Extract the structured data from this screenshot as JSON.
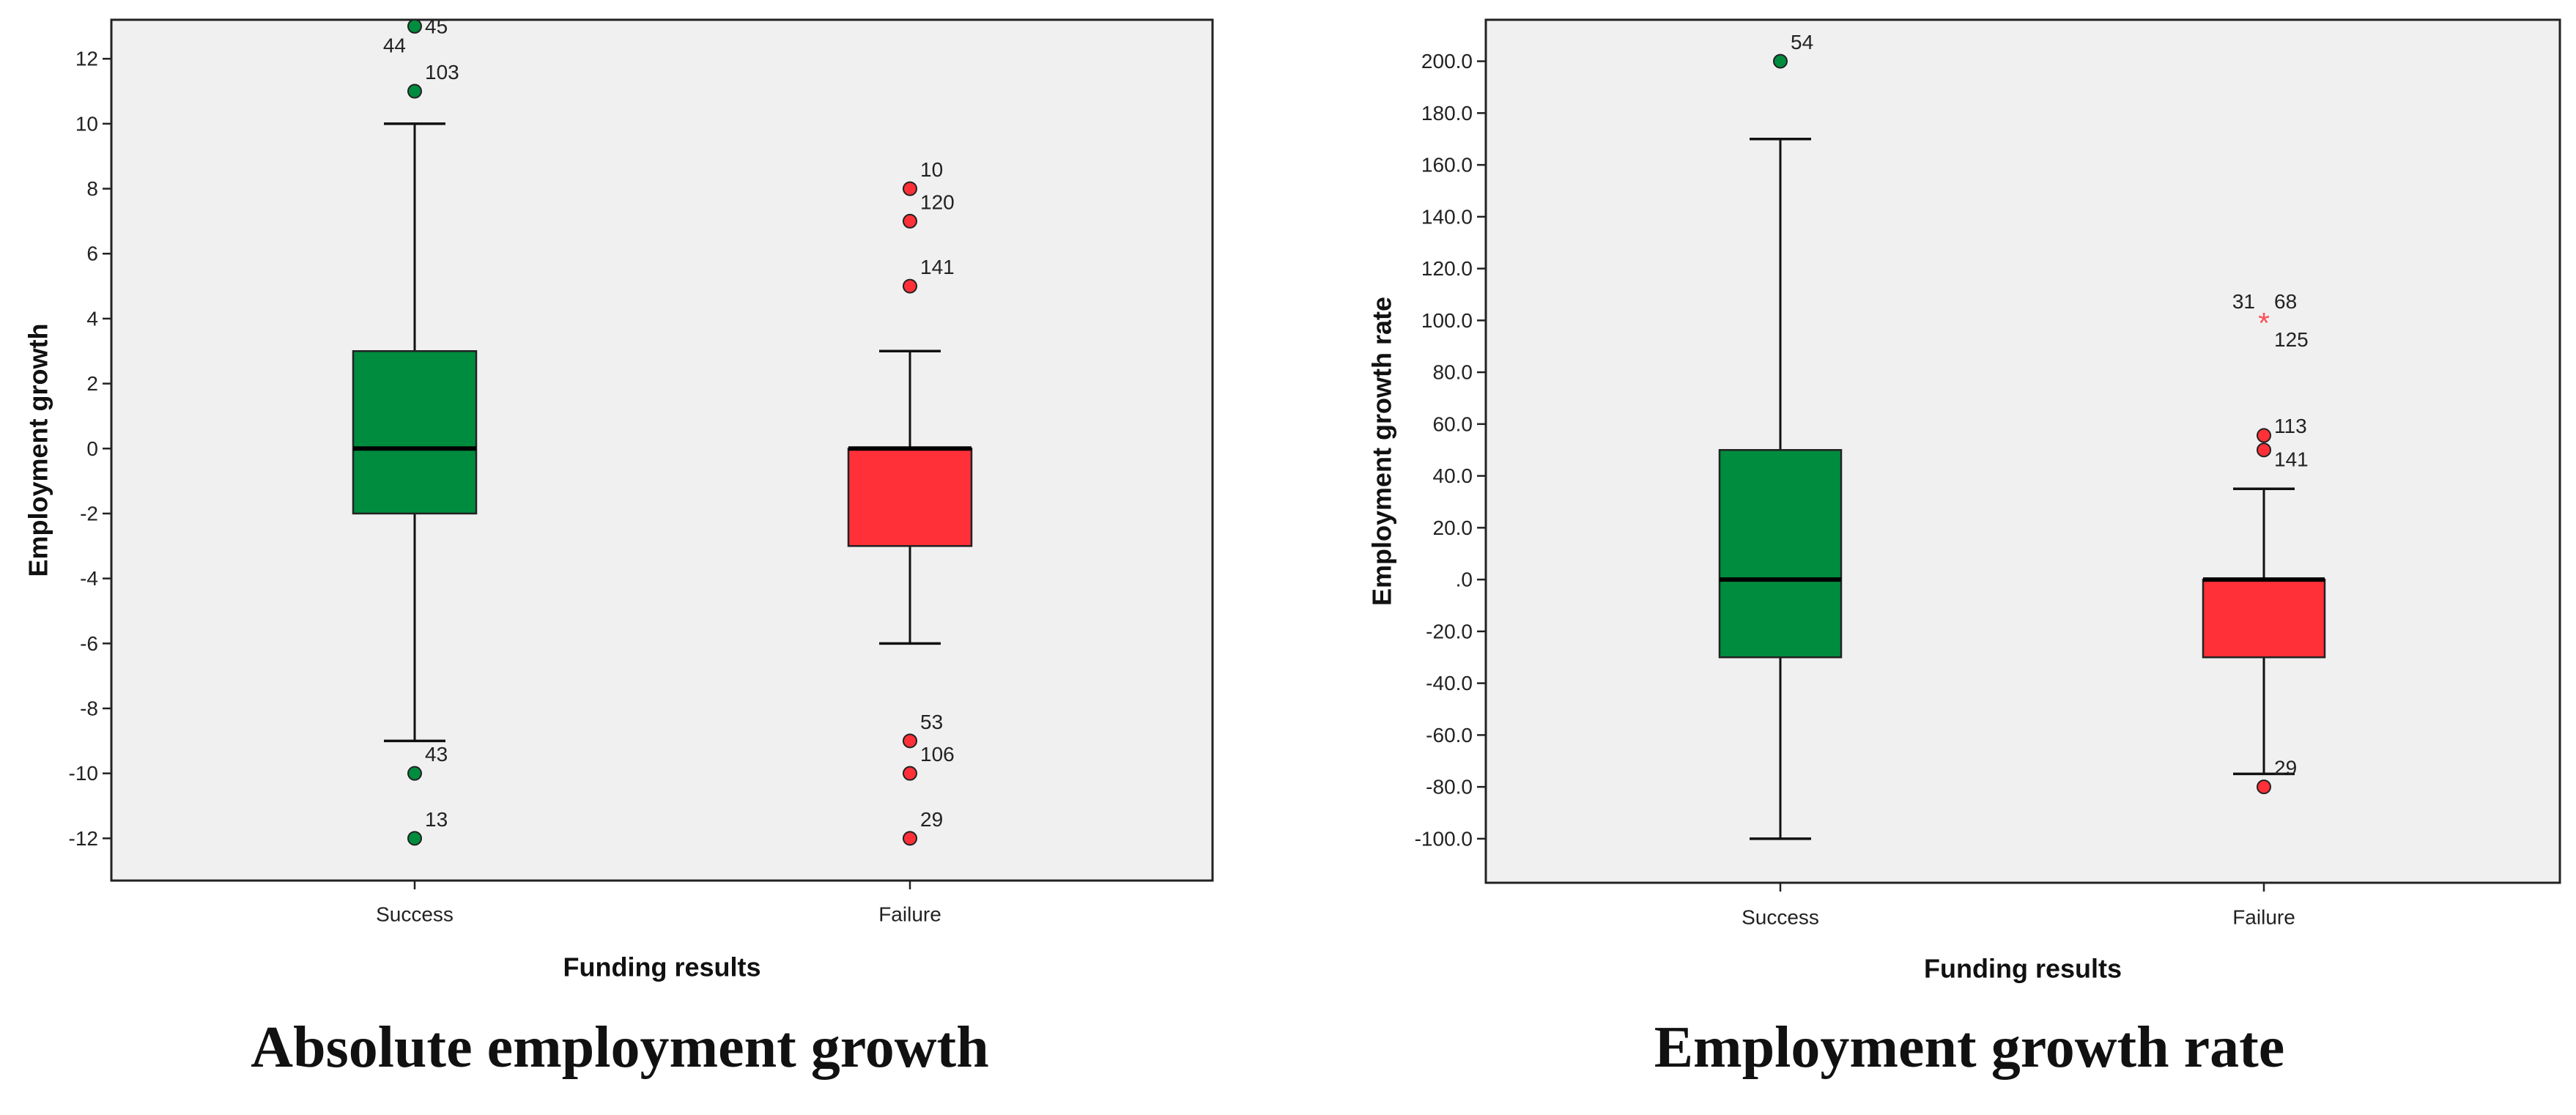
{
  "colors": {
    "success_fill": "#008C3E",
    "failure_fill": "#FF3038",
    "plot_background": "#F0F0F0",
    "extreme_marker": "#FF4D55"
  },
  "captions": {
    "left": "Absolute employment growth",
    "right": "Employment growth rate"
  },
  "chart_data": [
    {
      "type": "boxplot",
      "title": "Absolute employment growth",
      "xlabel": "Funding results",
      "ylabel": "Employment growth",
      "categories": [
        "Success",
        "Failure"
      ],
      "ylim": [
        -13.3,
        13.2
      ],
      "yticks": [
        {
          "value": 12,
          "label": "12"
        },
        {
          "value": 10,
          "label": "10"
        },
        {
          "value": 8,
          "label": "8"
        },
        {
          "value": 6,
          "label": "6"
        },
        {
          "value": 4,
          "label": "4"
        },
        {
          "value": 2,
          "label": "2"
        },
        {
          "value": 0,
          "label": "0"
        },
        {
          "value": -2,
          "label": "-2"
        },
        {
          "value": -4,
          "label": "-4"
        },
        {
          "value": -6,
          "label": "-6"
        },
        {
          "value": -8,
          "label": "-8"
        },
        {
          "value": -10,
          "label": "-10"
        },
        {
          "value": -12,
          "label": "-12"
        }
      ],
      "boxes": [
        {
          "category": "Success",
          "color": "#008C3E",
          "whisker_low": -9,
          "q1": -2,
          "median": 0,
          "q3": 3,
          "whisker_high": 10
        },
        {
          "category": "Failure",
          "color": "#FF3038",
          "whisker_low": -6,
          "q1": -3,
          "median": 0,
          "q3": 0,
          "whisker_high": 3
        }
      ],
      "outliers": [
        {
          "category": "Success",
          "value": 13,
          "marker": "circle",
          "labels": [
            {
              "text": "45",
              "side": "right",
              "level": 0
            },
            {
              "text": "44",
              "side": "left",
              "level": -1
            }
          ]
        },
        {
          "category": "Success",
          "value": 11,
          "marker": "circle",
          "labels": [
            {
              "text": "103",
              "side": "right",
              "level": 1
            }
          ]
        },
        {
          "category": "Success",
          "value": -10,
          "marker": "circle",
          "labels": [
            {
              "text": "43",
              "side": "right",
              "level": 1
            }
          ]
        },
        {
          "category": "Success",
          "value": -12,
          "marker": "circle",
          "labels": [
            {
              "text": "13",
              "side": "right",
              "level": 1
            }
          ]
        },
        {
          "category": "Failure",
          "value": 8,
          "marker": "circle",
          "labels": [
            {
              "text": "10",
              "side": "right",
              "level": 1
            }
          ]
        },
        {
          "category": "Failure",
          "value": 7,
          "marker": "circle",
          "labels": [
            {
              "text": "120",
              "side": "right",
              "level": 1
            }
          ]
        },
        {
          "category": "Failure",
          "value": 5,
          "marker": "circle",
          "labels": [
            {
              "text": "141",
              "side": "right",
              "level": 1
            }
          ]
        },
        {
          "category": "Failure",
          "value": -9,
          "marker": "circle",
          "labels": [
            {
              "text": "53",
              "side": "right",
              "level": 1
            }
          ]
        },
        {
          "category": "Failure",
          "value": -10,
          "marker": "circle",
          "labels": [
            {
              "text": "106",
              "side": "right",
              "level": 1
            }
          ]
        },
        {
          "category": "Failure",
          "value": -12,
          "marker": "circle",
          "labels": [
            {
              "text": "29",
              "side": "right",
              "level": 1
            }
          ]
        }
      ]
    },
    {
      "type": "boxplot",
      "title": "Employment growth rate",
      "xlabel": "Funding results",
      "ylabel": "Employment growth rate",
      "categories": [
        "Success",
        "Failure"
      ],
      "ylim": [
        -117,
        216
      ],
      "yticks": [
        {
          "value": 200,
          "label": "200.0"
        },
        {
          "value": 180,
          "label": "180.0"
        },
        {
          "value": 160,
          "label": "160.0"
        },
        {
          "value": 140,
          "label": "140.0"
        },
        {
          "value": 120,
          "label": "120.0"
        },
        {
          "value": 100,
          "label": "100.0"
        },
        {
          "value": 80,
          "label": "80.0"
        },
        {
          "value": 60,
          "label": "60.0"
        },
        {
          "value": 40,
          "label": "40.0"
        },
        {
          "value": 20,
          "label": "20.0"
        },
        {
          "value": 0,
          "label": ".0"
        },
        {
          "value": -20,
          "label": "-20.0"
        },
        {
          "value": -40,
          "label": "-40.0"
        },
        {
          "value": -60,
          "label": "-60.0"
        },
        {
          "value": -80,
          "label": "-80.0"
        },
        {
          "value": -100,
          "label": "-100.0"
        }
      ],
      "boxes": [
        {
          "category": "Success",
          "color": "#008C3E",
          "whisker_low": -100,
          "q1": -30,
          "median": 0,
          "q3": 50,
          "whisker_high": 170
        },
        {
          "category": "Failure",
          "color": "#FF3038",
          "whisker_low": -75,
          "q1": -30,
          "median": 0,
          "q3": 0,
          "whisker_high": 35
        }
      ],
      "outliers": [
        {
          "category": "Success",
          "value": 200,
          "marker": "circle",
          "labels": [
            {
              "text": "54",
              "side": "right",
              "level": 1
            }
          ]
        },
        {
          "category": "Failure",
          "value": 100,
          "marker": "star",
          "labels": [
            {
              "text": "31",
              "side": "left",
              "level": 1
            },
            {
              "text": "68",
              "side": "right",
              "level": 1
            },
            {
              "text": "125",
              "side": "right",
              "level": -1
            }
          ]
        },
        {
          "category": "Failure",
          "value": 55.6,
          "marker": "circle",
          "labels": [
            {
              "text": "113",
              "side": "right",
              "level": 0.5
            }
          ]
        },
        {
          "category": "Failure",
          "value": 50,
          "marker": "circle",
          "labels": [
            {
              "text": "141",
              "side": "right",
              "level": -0.5
            }
          ]
        },
        {
          "category": "Failure",
          "value": -80,
          "marker": "circle",
          "labels": [
            {
              "text": "29",
              "side": "right",
              "level": 1
            }
          ]
        }
      ]
    }
  ]
}
